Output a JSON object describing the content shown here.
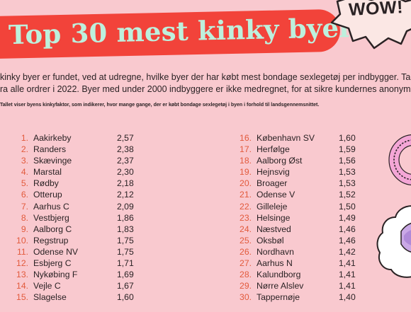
{
  "title": "Top 30 mest kinky byer",
  "badge": "WOW!",
  "intro_lines": [
    "kinky byer er fundet, ved at udregne, hvilke byer der har købt mest bondage sexlegetøj per indbygger. Tallene",
    "ra alle ordrer i 2022. Byer med under 2000 indbyggere er ikke medregnet, for at sikre kundernes anonymitet."
  ],
  "note": "Tallet viser byens kinkyfaktor, som indikerer, hvor mange gange, der er købt bondage sexlegetøj i byen i forhold til landsgennemsnittet.",
  "rankings_left": [
    {
      "rank": "1.",
      "city": "Aakirkeby",
      "score": "2,57"
    },
    {
      "rank": "2.",
      "city": "Randers",
      "score": "2,38"
    },
    {
      "rank": "3.",
      "city": "Skævinge",
      "score": "2,37"
    },
    {
      "rank": "4.",
      "city": "Marstal",
      "score": "2,30"
    },
    {
      "rank": "5.",
      "city": "Rødby",
      "score": "2,18"
    },
    {
      "rank": "6.",
      "city": "Otterup",
      "score": "2,12"
    },
    {
      "rank": "7.",
      "city": "Aarhus C",
      "score": "2,09"
    },
    {
      "rank": "8.",
      "city": "Vestbjerg",
      "score": "1,86"
    },
    {
      "rank": "9.",
      "city": "Aalborg C",
      "score": "1,83"
    },
    {
      "rank": "10.",
      "city": "Regstrup",
      "score": "1,75"
    },
    {
      "rank": "11.",
      "city": "Odense NV",
      "score": "1,75"
    },
    {
      "rank": "12.",
      "city": "Esbjerg C",
      "score": "1,71"
    },
    {
      "rank": "13.",
      "city": "Nykøbing F",
      "score": "1,69"
    },
    {
      "rank": "14.",
      "city": "Vejle C",
      "score": "1,67"
    },
    {
      "rank": "15.",
      "city": "Slagelse",
      "score": "1,60"
    }
  ],
  "rankings_right": [
    {
      "rank": "16.",
      "city": "København SV",
      "score": "1,60"
    },
    {
      "rank": "17.",
      "city": "Herfølge",
      "score": "1,59"
    },
    {
      "rank": "18.",
      "city": "Aalborg Øst",
      "score": "1,56"
    },
    {
      "rank": "19.",
      "city": "Hejnsvig",
      "score": "1,53"
    },
    {
      "rank": "20.",
      "city": "Broager",
      "score": "1,53"
    },
    {
      "rank": "21.",
      "city": "Odense V",
      "score": "1,52"
    },
    {
      "rank": "22.",
      "city": "Gilleleje",
      "score": "1,50"
    },
    {
      "rank": "23.",
      "city": "Helsinge",
      "score": "1,49"
    },
    {
      "rank": "24.",
      "city": "Næstved",
      "score": "1,46"
    },
    {
      "rank": "25.",
      "city": "Oksbøl",
      "score": "1,46"
    },
    {
      "rank": "26.",
      "city": "Nordhavn",
      "score": "1,42"
    },
    {
      "rank": "27.",
      "city": "Aarhus N",
      "score": "1,41"
    },
    {
      "rank": "28.",
      "city": "Kalundborg",
      "score": "1,41"
    },
    {
      "rank": "29.",
      "city": "Nørre Alslev",
      "score": "1,41"
    },
    {
      "rank": "30.",
      "city": "Tappernøje",
      "score": "1,40"
    }
  ],
  "decorations": {
    "ring": "donut-ring-icon",
    "bubble": "speech-bubble-icon",
    "badge_shape": "starburst-icon"
  }
}
